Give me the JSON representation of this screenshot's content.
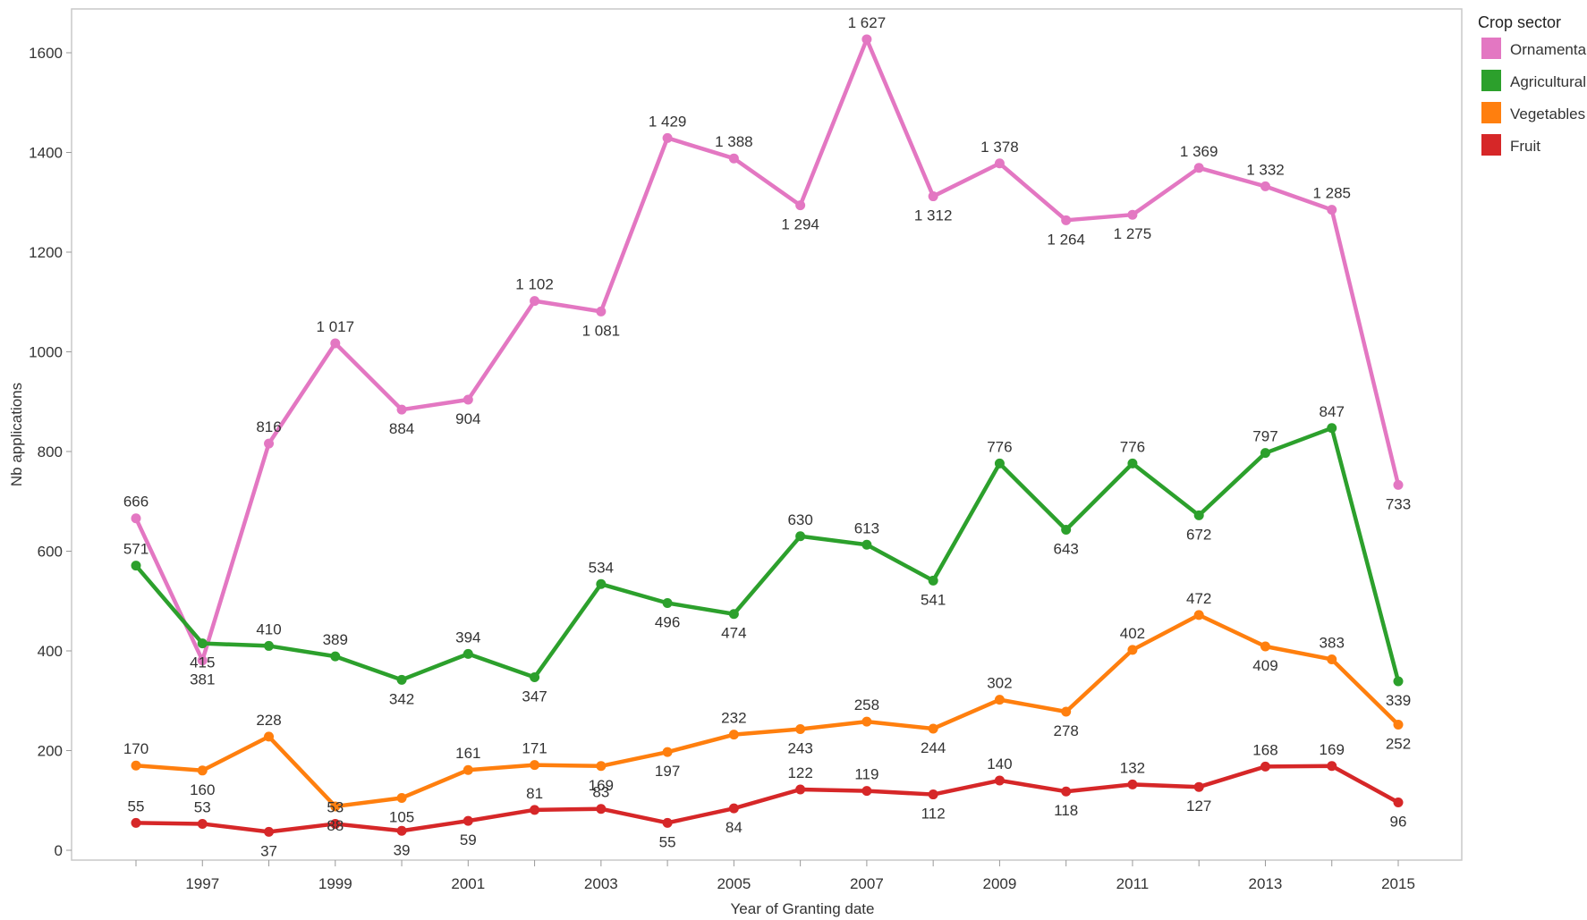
{
  "chart_data": {
    "type": "line",
    "xlabel": "Year of Granting date",
    "ylabel": "Nb applications",
    "ylim": [
      0,
      1700
    ],
    "y_ticks": [
      "0",
      "200",
      "400",
      "600",
      "800",
      "1000",
      "1200",
      "1400",
      "1600"
    ],
    "y_tick_values": [
      0,
      200,
      400,
      600,
      800,
      1000,
      1200,
      1400,
      1600
    ],
    "x": [
      1996,
      1997,
      1998,
      1999,
      2000,
      2001,
      2002,
      2003,
      2004,
      2005,
      2006,
      2007,
      2008,
      2009,
      2010,
      2011,
      2012,
      2013,
      2014,
      2015
    ],
    "x_tick_labels": [
      "1997",
      "1999",
      "2001",
      "2003",
      "2005",
      "2007",
      "2009",
      "2011",
      "2013",
      "2015"
    ],
    "x_tick_values": [
      1997,
      1999,
      2001,
      2003,
      2005,
      2007,
      2009,
      2011,
      2013,
      2015
    ],
    "legend": {
      "title": "Crop sector",
      "position": "right"
    },
    "grid": false,
    "series": [
      {
        "name": "Ornamental",
        "color": "#e377c2",
        "values": [
          666,
          381,
          816,
          1017,
          884,
          904,
          1102,
          1081,
          1429,
          1388,
          1294,
          1627,
          1312,
          1378,
          1264,
          1275,
          1369,
          1332,
          1285,
          733
        ],
        "labels": [
          "666",
          "381",
          "816",
          "1 017",
          "884",
          "904",
          "1 102",
          "1 081",
          "1 429",
          "1 388",
          "1 294",
          "1 627",
          "1 312",
          "1 378",
          "1 264",
          "1 275",
          "1 369",
          "1 332",
          "1 285",
          "733"
        ]
      },
      {
        "name": "Agricultural",
        "color": "#2ca02c",
        "values": [
          571,
          415,
          410,
          389,
          342,
          394,
          347,
          534,
          496,
          474,
          630,
          613,
          541,
          776,
          643,
          776,
          672,
          797,
          847,
          339
        ],
        "labels": [
          "571",
          "415",
          "410",
          "389",
          "342",
          "394",
          "347",
          "534",
          "496",
          "474",
          "630",
          "613",
          "541",
          "776",
          "643",
          "776",
          "672",
          "797",
          "847",
          "339"
        ]
      },
      {
        "name": "Vegetables",
        "color": "#ff7f0e",
        "values": [
          170,
          160,
          228,
          88,
          105,
          161,
          171,
          169,
          197,
          232,
          243,
          258,
          244,
          302,
          278,
          402,
          472,
          409,
          383,
          252
        ],
        "labels": [
          "170",
          "160",
          "228",
          "88",
          "105",
          "161",
          "171",
          "169",
          "197",
          "232",
          "243",
          "258",
          "244",
          "302",
          "278",
          "402",
          "472",
          "409",
          "383",
          "252"
        ]
      },
      {
        "name": "Fruit",
        "color": "#d62728",
        "values": [
          55,
          53,
          37,
          53,
          39,
          59,
          81,
          83,
          55,
          84,
          122,
          119,
          112,
          140,
          118,
          132,
          127,
          168,
          169,
          96
        ],
        "labels": [
          "55",
          "53",
          "37",
          "53",
          "39",
          "59",
          "81",
          "83",
          "55",
          "84",
          "122",
          "119",
          "112",
          "140",
          "118",
          "132",
          "127",
          "168",
          "169",
          "96"
        ]
      }
    ]
  }
}
